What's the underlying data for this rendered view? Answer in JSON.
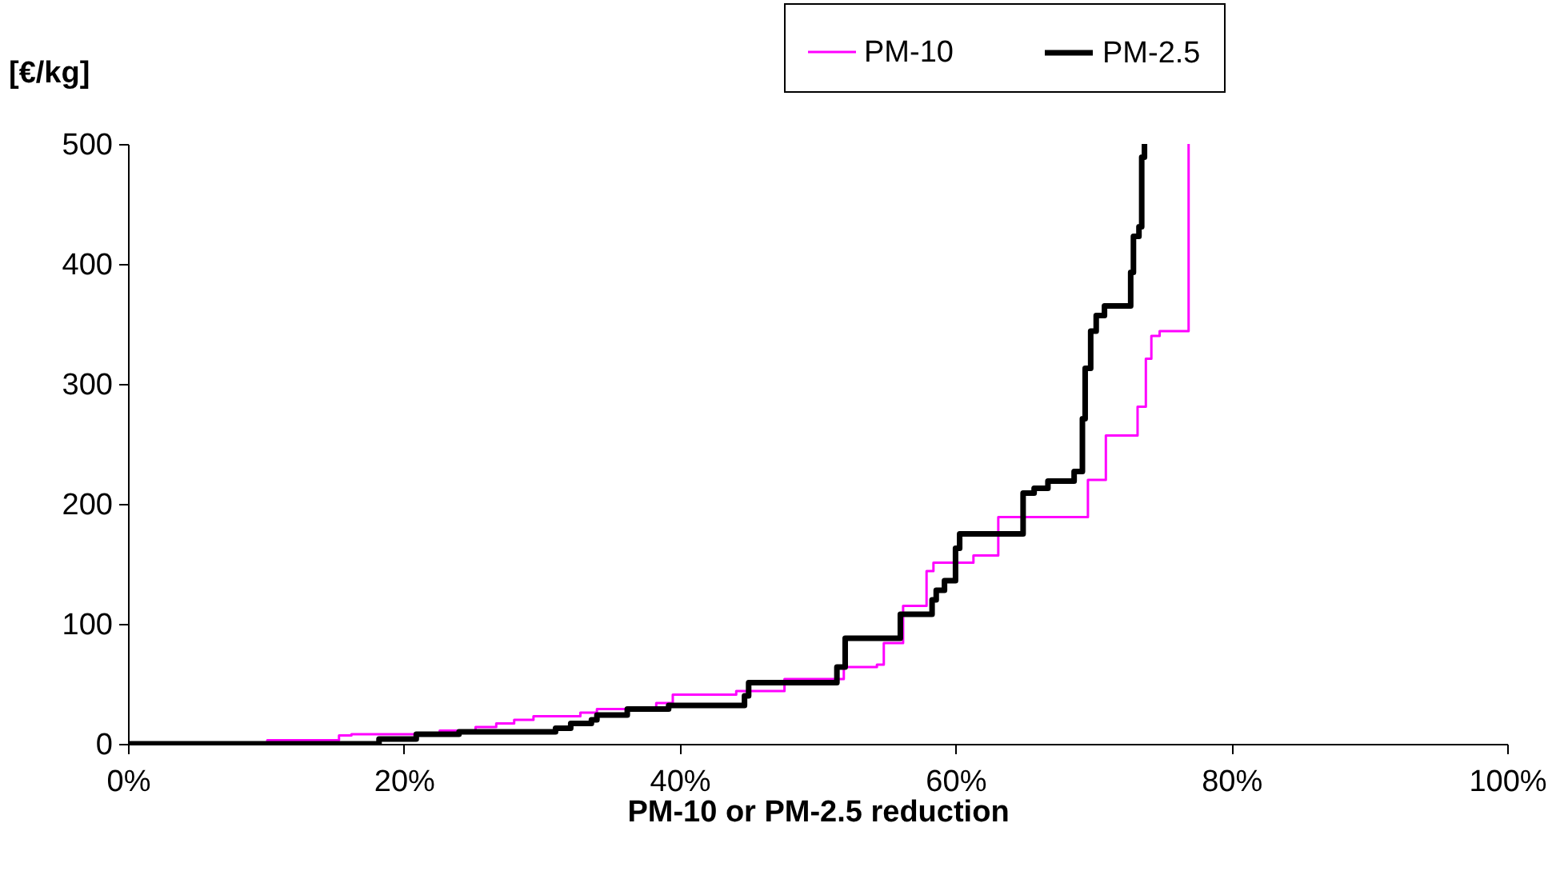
{
  "chart_data": {
    "type": "step",
    "xlabel": "PM-10 or PM-2.5 reduction",
    "ylabel": "[€/kg]",
    "xlim": [
      0,
      100
    ],
    "xticks": [
      {
        "value": 0,
        "label": "0%"
      },
      {
        "value": 20,
        "label": "20%"
      },
      {
        "value": 40,
        "label": "40%"
      },
      {
        "value": 60,
        "label": "60%"
      },
      {
        "value": 80,
        "label": "80%"
      },
      {
        "value": 100,
        "label": "100%"
      }
    ],
    "ylim": [
      0,
      500
    ],
    "yticks": [
      0,
      100,
      200,
      300,
      400,
      500
    ],
    "grid": false,
    "legend": "top right",
    "series": [
      {
        "name": "PM-10",
        "color": "#ff00ff",
        "x": [
          0,
          10.1,
          15.3,
          16.2,
          22.6,
          25.2,
          26.7,
          28,
          29.4,
          32.8,
          34,
          38.3,
          39.5,
          44.1,
          47.6,
          51.9,
          54.3,
          54.8,
          56.2,
          57.9,
          58.4,
          61.3,
          63.1,
          69.6,
          70.9,
          73.2,
          73.8,
          74.2,
          74.8,
          76.9
        ],
        "values": [
          0,
          3,
          7,
          8,
          11,
          14,
          17,
          20,
          23,
          26,
          29,
          34,
          41,
          44,
          54,
          64,
          66,
          84,
          115,
          144,
          151,
          157,
          189,
          220,
          257,
          281,
          321,
          340,
          344,
          500
        ]
      },
      {
        "name": "PM-2.5",
        "color": "#000000",
        "x": [
          0,
          18.2,
          20.9,
          24,
          31,
          32.1,
          33.6,
          34,
          36.2,
          39.2,
          44.7,
          45,
          51.4,
          52,
          56,
          58.3,
          58.6,
          59.2,
          60,
          60.3,
          61.9,
          64.9,
          65.7,
          66.7,
          68.6,
          69.2,
          69.4,
          69.8,
          70.2,
          70.8,
          72.7,
          72.9,
          73.3,
          73.5,
          73.7
        ],
        "values": [
          0,
          4,
          8,
          10,
          13,
          17,
          20,
          24,
          29,
          32,
          40,
          51,
          64,
          88,
          108,
          120,
          128,
          136,
          163,
          175,
          175,
          209,
          213,
          219,
          227,
          271,
          313,
          344,
          357,
          365,
          393,
          423,
          431,
          489,
          500
        ]
      }
    ]
  }
}
